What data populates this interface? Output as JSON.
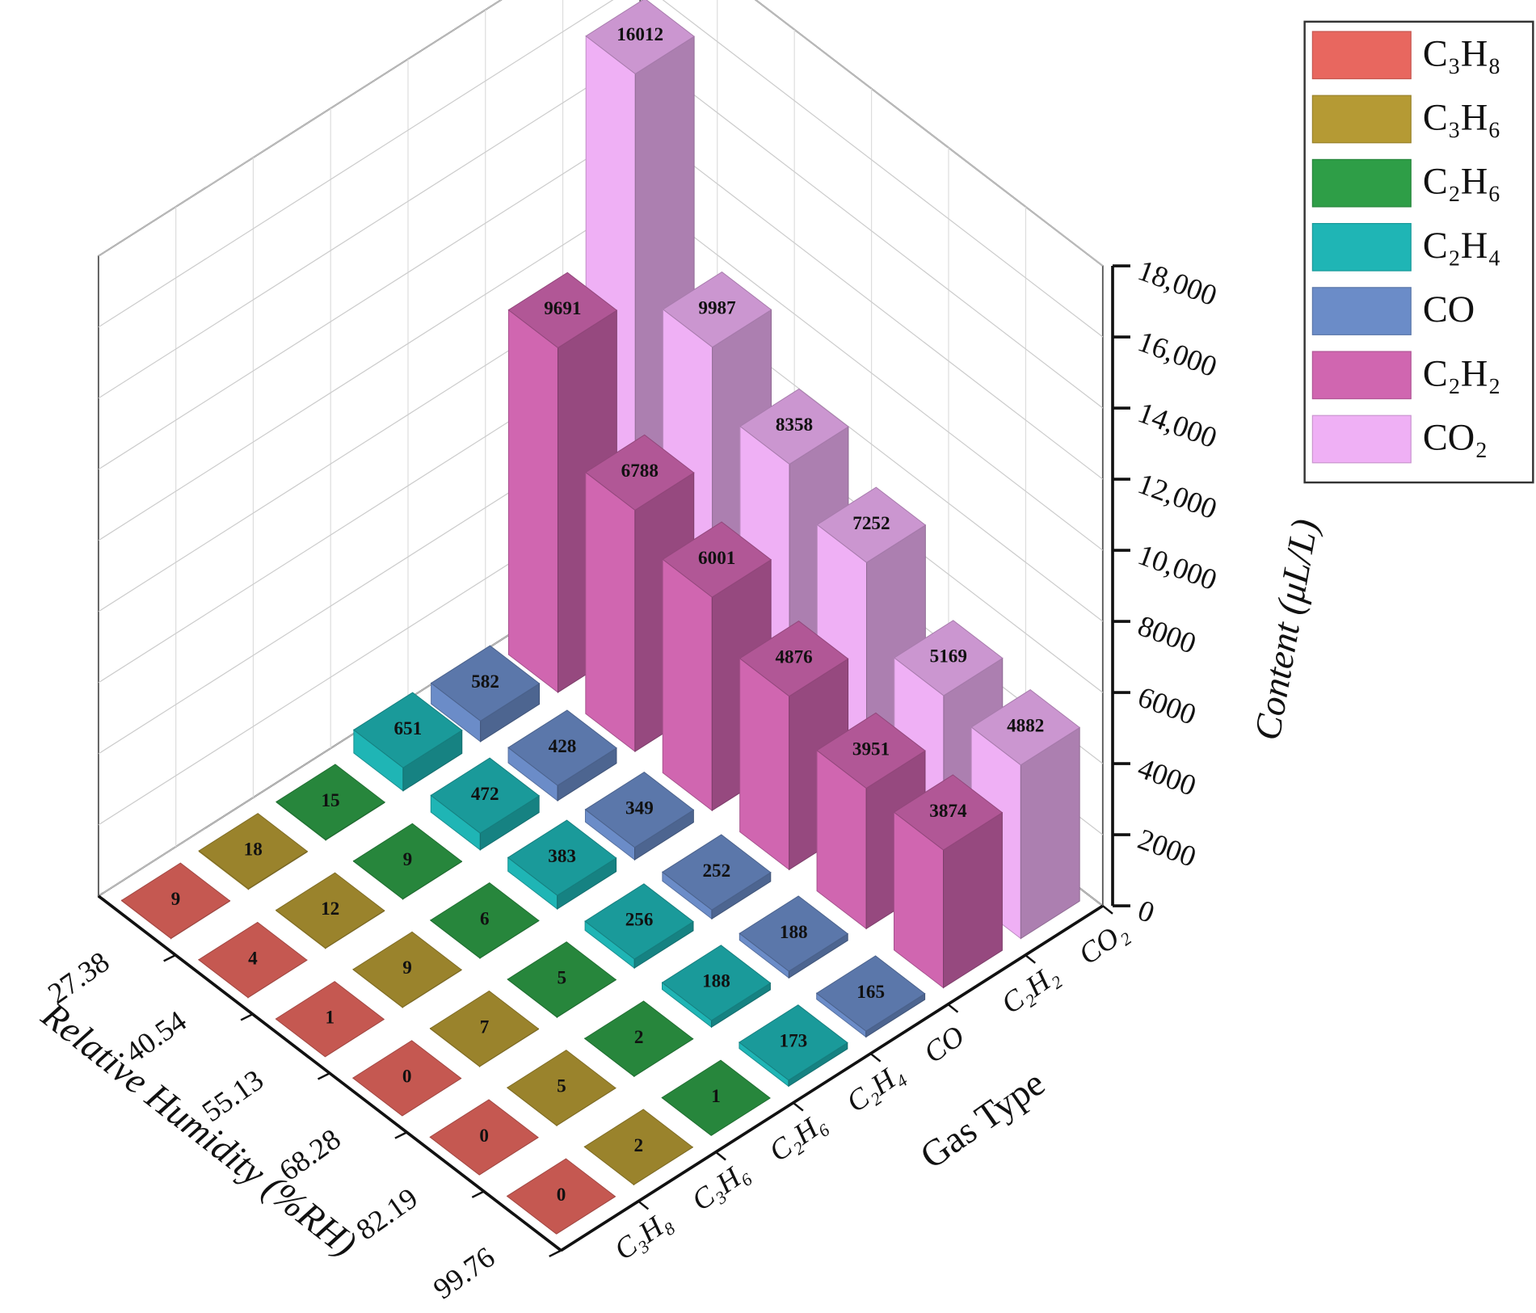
{
  "chart_data": {
    "type": "bar3d",
    "x_label": "Relative Humidity (%RH)",
    "y_label": "Gas Type",
    "z_label": "Content (μL/L)",
    "categories": [
      "27.38",
      "40.54",
      "55.13",
      "68.28",
      "82.19",
      "99.76"
    ],
    "series": [
      {
        "name": "C₃H₈",
        "color": "#e8675f",
        "values": [
          9,
          4,
          1,
          0,
          0,
          0
        ]
      },
      {
        "name": "C₃H₆",
        "color": "#b59a34",
        "values": [
          18,
          12,
          9,
          7,
          5,
          2
        ]
      },
      {
        "name": "C₂H₆",
        "color": "#2e9e47",
        "values": [
          15,
          9,
          6,
          5,
          2,
          1
        ]
      },
      {
        "name": "C₂H₄",
        "color": "#1fb5b5",
        "values": [
          651,
          472,
          383,
          256,
          188,
          173
        ]
      },
      {
        "name": "CO",
        "color": "#6b8cc8",
        "values": [
          582,
          428,
          349,
          252,
          188,
          165
        ]
      },
      {
        "name": "C₂H₂",
        "color": "#d066b0",
        "values": [
          9691,
          6788,
          6001,
          4876,
          3951,
          3874
        ]
      },
      {
        "name": "CO₂",
        "color": "#efb0f5",
        "values": [
          16012,
          9987,
          8358,
          7252,
          5169,
          4882
        ]
      }
    ],
    "zlim": [
      0,
      18000
    ],
    "zticks": [
      0,
      2000,
      4000,
      6000,
      8000,
      {
        "value": 10000,
        "label": "10,000"
      },
      {
        "value": 12000,
        "label": "12,000"
      },
      {
        "value": 14000,
        "label": "14,000"
      },
      {
        "value": 16000,
        "label": "16,000"
      },
      {
        "value": 18000,
        "label": "18,000"
      }
    ],
    "grid": true,
    "legend": "top-right"
  }
}
